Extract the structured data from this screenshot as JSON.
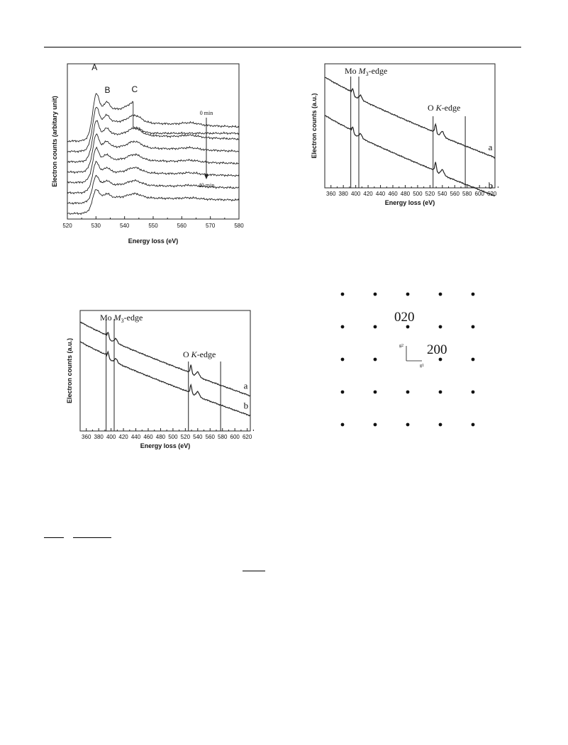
{
  "chart_data": [
    {
      "type": "line",
      "panel": "top-left",
      "xlabel": "Energy loss (eV)",
      "ylabel": "Electron counts (arbitary unit)",
      "xlim": [
        520,
        580
      ],
      "x_ticks": [
        520,
        530,
        540,
        550,
        560,
        570,
        580
      ],
      "peak_labels": [
        {
          "text": "A",
          "x": 529.5
        },
        {
          "text": "B",
          "x": 534
        },
        {
          "text": "C",
          "x": 543.5
        }
      ],
      "time_labels": {
        "start": "0 min",
        "end": "40 min"
      },
      "series_count": 8
    },
    {
      "type": "line",
      "panel": "top-right",
      "xlabel": "Energy loss (eV)",
      "ylabel": "Electron counts (a.u.)",
      "xlim": [
        350,
        625
      ],
      "x_ticks": [
        360,
        380,
        400,
        420,
        440,
        460,
        480,
        500,
        520,
        540,
        560,
        580,
        600,
        620
      ],
      "edge_markers": [
        392,
        405,
        525,
        577
      ],
      "annotations": {
        "mo_edge": "Mo ",
        "mo_sym": "M",
        "mo_sub": "3",
        "mo_rest": "-edge",
        "o_edge": "O ",
        "o_sym": "K",
        "o_rest": "-edge"
      },
      "series": [
        {
          "name": "a"
        },
        {
          "name": "b"
        }
      ]
    },
    {
      "type": "line",
      "panel": "bottom-left",
      "xlabel": "Energy loss (eV)",
      "ylabel": "Electron counts (a.u.)",
      "xlim": [
        350,
        625
      ],
      "x_ticks": [
        360,
        380,
        400,
        420,
        440,
        460,
        480,
        500,
        520,
        540,
        560,
        580,
        600,
        620
      ],
      "edge_markers": [
        392,
        405,
        525,
        577
      ],
      "annotations": {
        "mo_edge": "Mo ",
        "mo_sym": "M",
        "mo_sub": "3",
        "mo_rest": "-edge",
        "o_edge": "O ",
        "o_sym": "K",
        "o_rest": "-edge"
      },
      "series": [
        {
          "name": "a"
        },
        {
          "name": "b"
        }
      ]
    }
  ],
  "diffraction": {
    "spot_label_1": "020",
    "spot_label_2": "200",
    "axis_1": "g2",
    "axis_2": "g1",
    "rows": 5,
    "cols": 5
  }
}
